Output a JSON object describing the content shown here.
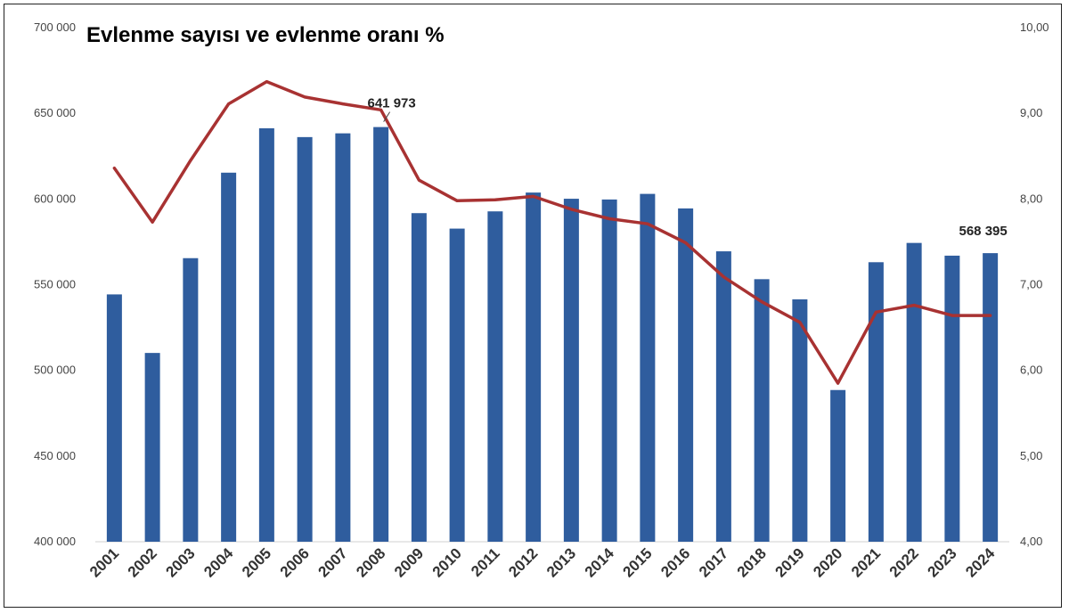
{
  "chart_data": {
    "type": "bar",
    "title": "Evlenme sayısı ve evlenme oranı %",
    "categories": [
      "2001",
      "2002",
      "2003",
      "2004",
      "2005",
      "2006",
      "2007",
      "2008",
      "2009",
      "2010",
      "2011",
      "2012",
      "2013",
      "2014",
      "2015",
      "2016",
      "2017",
      "2018",
      "2019",
      "2020",
      "2021",
      "2022",
      "2023",
      "2024"
    ],
    "series": [
      {
        "type": "bar",
        "axis": "left",
        "color": "#2f5d9e",
        "values": [
          544322,
          510155,
          565468,
          615357,
          641241,
          636121,
          638311,
          641973,
          591742,
          582715,
          592775,
          603751,
          600138,
          599704,
          602982,
          594493,
          569459,
          553202,
          541424,
          488523,
          563106,
          574358,
          566931,
          568395
        ]
      },
      {
        "type": "line",
        "axis": "right",
        "color": "#a83232",
        "values": [
          8.36,
          7.73,
          8.45,
          9.11,
          9.37,
          9.19,
          9.11,
          9.04,
          8.22,
          7.98,
          7.99,
          8.03,
          7.88,
          7.77,
          7.71,
          7.49,
          7.09,
          6.8,
          6.56,
          5.85,
          6.68,
          6.76,
          6.64,
          6.64
        ]
      }
    ],
    "ylim_left": [
      400000,
      700000
    ],
    "ylim_right": [
      4.0,
      10.0
    ],
    "yticks_left": [
      "400 000",
      "450 000",
      "500 000",
      "550 000",
      "600 000",
      "650 000",
      "700 000"
    ],
    "yticks_right": [
      "4,00",
      "5,00",
      "6,00",
      "7,00",
      "8,00",
      "9,00",
      "10,00"
    ],
    "data_labels": [
      {
        "category": "2008",
        "text": "641 973"
      },
      {
        "category": "2024",
        "text": "568 395"
      }
    ],
    "grid": false,
    "legend": "none"
  }
}
